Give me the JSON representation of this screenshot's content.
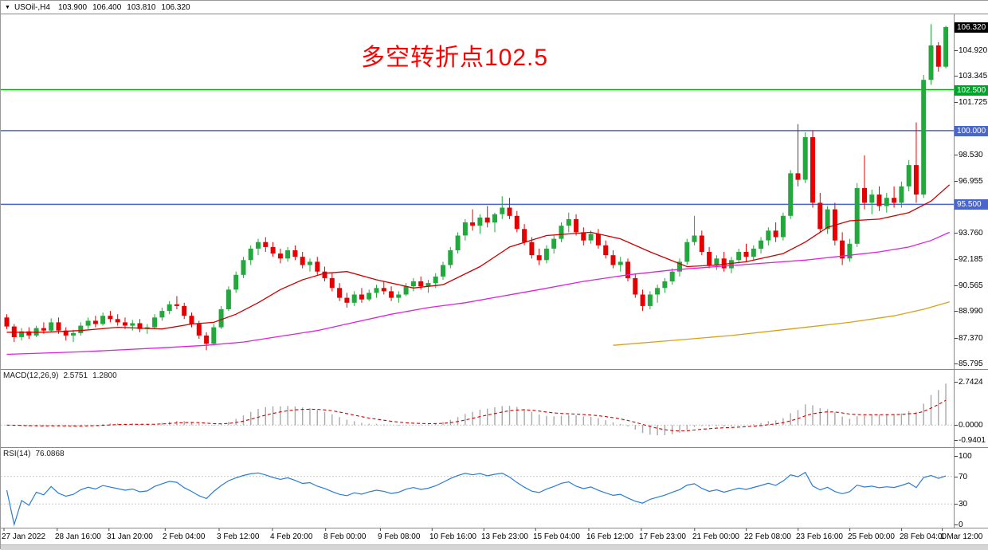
{
  "title_bar": {
    "collapse_icon": "▼",
    "symbol_period": "USOil-,H4",
    "open": "103.900",
    "high": "106.400",
    "low": "103.810",
    "close": "106.320"
  },
  "annotation": {
    "text": "多空转折点102.5",
    "color": "#FF0000"
  },
  "colors": {
    "bull": "#22a83c",
    "bear": "#e60000",
    "ma_fast": "#cc0000",
    "ma_mid": "#dd22dd",
    "ma_slow": "#d8a018",
    "macd_hist": "#a8a8a8",
    "macd_signal": "#cc0000",
    "rsi_line": "#2b7cd3",
    "level_dotted": "#c8c8c8",
    "line_green": "#00b300",
    "line_blue": "#4a66cc",
    "tag_black_bg": "#000000"
  },
  "price_scale": {
    "labels": [
      "104.920",
      "103.345",
      "101.725",
      "98.530",
      "96.955",
      "93.760",
      "92.185",
      "90.565",
      "88.990",
      "87.370",
      "85.795"
    ],
    "tags": [
      {
        "text": "106.320",
        "bg": "#000000"
      },
      {
        "text": "102.500",
        "bg": "#00a32a"
      },
      {
        "text": "100.000",
        "bg": "#4a66cc"
      },
      {
        "text": "95.500",
        "bg": "#4a66cc"
      }
    ]
  },
  "macd": {
    "label": "MACD(12,26,9)",
    "value_main": "2.5751",
    "value_signal": "1.2800",
    "scale_labels": [
      "2.7424",
      "0.0000",
      "-0.9401"
    ],
    "scale_values": [
      2.7424,
      0,
      -0.9401
    ],
    "range": [
      -1.2,
      3.3
    ],
    "params": {
      "fast": 12,
      "slow": 26,
      "signal": 9
    }
  },
  "rsi": {
    "label": "RSI(14)",
    "value": "76.0868",
    "scale_labels": [
      "100",
      "70",
      "30",
      "0"
    ],
    "scale_values": [
      100,
      70,
      30,
      0
    ],
    "levels": [
      70,
      30
    ],
    "period": 14
  },
  "chart_data": {
    "type": "candlestick",
    "symbol": "USOil",
    "timeframe": "H4",
    "title": "USOil H4 with MACD(12,26,9) and RSI(14), long/short pivot annotation at 102.5",
    "ohlc_current": {
      "open": 103.9,
      "high": 106.4,
      "low": 103.81,
      "close": 106.32
    },
    "y_axis": {
      "min": 85.5,
      "max": 107.05
    },
    "horizontal_lines": [
      {
        "value": 102.5,
        "color": "#00b300"
      },
      {
        "value": 100.0,
        "color": "#4a66cc"
      },
      {
        "value": 95.5,
        "color": "#4a66cc"
      }
    ],
    "candles": [
      [
        88.6,
        88.8,
        87.9,
        88.05
      ],
      [
        88.05,
        88.2,
        87.1,
        87.4
      ],
      [
        87.4,
        87.95,
        87.2,
        87.75
      ],
      [
        87.75,
        88.0,
        87.3,
        87.5
      ],
      [
        87.5,
        88.1,
        87.4,
        87.95
      ],
      [
        87.95,
        88.3,
        87.6,
        87.8
      ],
      [
        87.8,
        88.55,
        87.7,
        88.3
      ],
      [
        88.3,
        88.6,
        87.6,
        87.8
      ],
      [
        87.8,
        88.0,
        87.2,
        87.5
      ],
      [
        87.5,
        87.85,
        87.1,
        87.65
      ],
      [
        87.65,
        88.3,
        87.5,
        88.1
      ],
      [
        88.1,
        88.6,
        87.9,
        88.4
      ],
      [
        88.4,
        88.7,
        88.0,
        88.2
      ],
      [
        88.2,
        88.9,
        88.1,
        88.7
      ],
      [
        88.7,
        89.0,
        88.3,
        88.5
      ],
      [
        88.5,
        88.8,
        88.1,
        88.3
      ],
      [
        88.3,
        88.6,
        87.9,
        88.1
      ],
      [
        88.1,
        88.45,
        87.8,
        88.25
      ],
      [
        88.25,
        88.5,
        87.7,
        87.9
      ],
      [
        87.9,
        88.2,
        87.6,
        88.0
      ],
      [
        88.0,
        88.8,
        87.9,
        88.6
      ],
      [
        88.6,
        89.2,
        88.4,
        89.0
      ],
      [
        89.0,
        89.6,
        88.8,
        89.4
      ],
      [
        89.4,
        89.9,
        89.1,
        89.3
      ],
      [
        89.3,
        89.5,
        88.5,
        88.7
      ],
      [
        88.7,
        88.9,
        88.0,
        88.2
      ],
      [
        88.2,
        88.4,
        87.3,
        87.5
      ],
      [
        87.5,
        87.7,
        86.6,
        87.0
      ],
      [
        87.0,
        88.2,
        86.9,
        88.0
      ],
      [
        88.0,
        89.3,
        87.9,
        89.1
      ],
      [
        89.1,
        90.5,
        89.0,
        90.3
      ],
      [
        90.3,
        91.4,
        90.1,
        91.2
      ],
      [
        91.2,
        92.3,
        91.0,
        92.1
      ],
      [
        92.1,
        93.0,
        91.8,
        92.8
      ],
      [
        92.8,
        93.4,
        92.4,
        93.2
      ],
      [
        93.2,
        93.5,
        92.6,
        92.9
      ],
      [
        92.9,
        93.2,
        92.3,
        92.5
      ],
      [
        92.5,
        92.8,
        91.9,
        92.2
      ],
      [
        92.2,
        92.9,
        92.0,
        92.7
      ],
      [
        92.7,
        93.0,
        92.1,
        92.3
      ],
      [
        92.3,
        92.6,
        91.6,
        91.8
      ],
      [
        91.8,
        92.2,
        91.4,
        92.0
      ],
      [
        92.0,
        92.3,
        91.2,
        91.4
      ],
      [
        91.4,
        91.7,
        90.8,
        91.0
      ],
      [
        91.0,
        91.3,
        90.2,
        90.4
      ],
      [
        90.4,
        90.7,
        89.6,
        89.8
      ],
      [
        89.8,
        90.1,
        89.2,
        89.5
      ],
      [
        89.5,
        90.2,
        89.3,
        90.0
      ],
      [
        90.0,
        90.4,
        89.5,
        89.7
      ],
      [
        89.7,
        90.3,
        89.6,
        90.1
      ],
      [
        90.1,
        90.6,
        89.8,
        90.4
      ],
      [
        90.4,
        90.8,
        90.0,
        90.2
      ],
      [
        90.2,
        90.5,
        89.6,
        89.8
      ],
      [
        89.8,
        90.2,
        89.5,
        90.0
      ],
      [
        90.0,
        90.7,
        89.9,
        90.5
      ],
      [
        90.5,
        91.0,
        90.2,
        90.8
      ],
      [
        90.8,
        91.1,
        90.3,
        90.5
      ],
      [
        90.5,
        90.9,
        90.1,
        90.7
      ],
      [
        90.7,
        91.3,
        90.4,
        91.1
      ],
      [
        91.1,
        92.0,
        90.9,
        91.8
      ],
      [
        91.8,
        92.9,
        91.6,
        92.7
      ],
      [
        92.7,
        93.8,
        92.5,
        93.6
      ],
      [
        93.6,
        94.6,
        93.3,
        94.4
      ],
      [
        94.4,
        95.2,
        93.9,
        94.2
      ],
      [
        94.2,
        94.9,
        93.7,
        94.7
      ],
      [
        94.7,
        95.4,
        94.1,
        94.4
      ],
      [
        94.4,
        95.0,
        93.8,
        94.9
      ],
      [
        94.9,
        96.0,
        94.6,
        95.3
      ],
      [
        95.3,
        95.9,
        94.6,
        94.8
      ],
      [
        94.8,
        95.1,
        93.8,
        94.0
      ],
      [
        94.0,
        94.3,
        93.0,
        93.2
      ],
      [
        93.2,
        93.5,
        92.2,
        92.4
      ],
      [
        92.4,
        92.8,
        91.8,
        92.1
      ],
      [
        92.1,
        93.0,
        91.9,
        92.8
      ],
      [
        92.8,
        93.6,
        92.5,
        93.4
      ],
      [
        93.4,
        94.4,
        93.2,
        94.2
      ],
      [
        94.2,
        95.0,
        93.8,
        94.6
      ],
      [
        94.6,
        94.9,
        93.6,
        93.8
      ],
      [
        93.8,
        94.1,
        93.0,
        93.3
      ],
      [
        93.3,
        93.9,
        93.1,
        93.7
      ],
      [
        93.7,
        94.0,
        92.8,
        93.0
      ],
      [
        93.0,
        93.3,
        92.2,
        92.4
      ],
      [
        92.4,
        92.7,
        91.6,
        91.8
      ],
      [
        91.8,
        92.3,
        91.4,
        92.0
      ],
      [
        92.0,
        92.2,
        90.8,
        91.0
      ],
      [
        91.0,
        91.3,
        89.8,
        90.0
      ],
      [
        90.0,
        90.3,
        89.0,
        89.3
      ],
      [
        89.3,
        90.2,
        89.1,
        90.0
      ],
      [
        90.0,
        90.6,
        89.5,
        90.4
      ],
      [
        90.4,
        91.0,
        90.1,
        90.8
      ],
      [
        90.8,
        91.6,
        90.6,
        91.4
      ],
      [
        91.4,
        92.2,
        91.1,
        92.0
      ],
      [
        92.0,
        93.4,
        91.8,
        93.2
      ],
      [
        93.2,
        94.8,
        93.0,
        93.6
      ],
      [
        93.6,
        93.9,
        92.4,
        92.6
      ],
      [
        92.6,
        92.9,
        91.6,
        91.8
      ],
      [
        91.8,
        92.4,
        91.5,
        92.2
      ],
      [
        92.2,
        92.6,
        91.4,
        91.6
      ],
      [
        91.6,
        92.3,
        91.3,
        92.1
      ],
      [
        92.1,
        92.8,
        91.9,
        92.6
      ],
      [
        92.6,
        93.1,
        92.0,
        92.3
      ],
      [
        92.3,
        93.0,
        92.1,
        92.8
      ],
      [
        92.8,
        93.5,
        92.5,
        93.3
      ],
      [
        93.3,
        94.1,
        93.0,
        93.9
      ],
      [
        93.9,
        94.4,
        93.2,
        93.5
      ],
      [
        93.5,
        95.0,
        93.3,
        94.8
      ],
      [
        94.8,
        97.6,
        94.6,
        97.4
      ],
      [
        97.4,
        100.4,
        96.6,
        97.0
      ],
      [
        97.0,
        99.9,
        96.8,
        99.6
      ],
      [
        99.6,
        100.0,
        95.3,
        95.6
      ],
      [
        95.6,
        96.2,
        93.8,
        94.0
      ],
      [
        94.0,
        95.4,
        93.7,
        95.2
      ],
      [
        95.2,
        95.6,
        93.0,
        93.3
      ],
      [
        93.3,
        93.8,
        91.8,
        92.2
      ],
      [
        92.2,
        93.4,
        92.0,
        93.1
      ],
      [
        93.1,
        96.8,
        92.9,
        96.5
      ],
      [
        96.5,
        98.5,
        95.2,
        95.6
      ],
      [
        95.6,
        96.4,
        94.9,
        96.1
      ],
      [
        96.1,
        96.6,
        95.1,
        95.4
      ],
      [
        95.4,
        96.2,
        95.0,
        95.9
      ],
      [
        95.9,
        96.6,
        95.3,
        95.6
      ],
      [
        95.6,
        96.9,
        95.3,
        96.6
      ],
      [
        96.6,
        98.2,
        96.3,
        97.9
      ],
      [
        97.9,
        100.5,
        95.6,
        96.1
      ],
      [
        96.1,
        103.4,
        95.9,
        103.1
      ],
      [
        103.1,
        106.5,
        102.8,
        105.2
      ],
      [
        105.2,
        105.4,
        103.6,
        103.9
      ],
      [
        103.9,
        106.4,
        103.8,
        106.32
      ]
    ],
    "moving_averages": [
      {
        "name": "ma-fast-red",
        "color": "#cc0000",
        "points": [
          [
            0,
            87.7
          ],
          [
            5,
            87.7
          ],
          [
            10,
            87.8
          ],
          [
            15,
            88.0
          ],
          [
            21,
            87.9
          ],
          [
            25,
            88.2
          ],
          [
            28,
            88.3
          ],
          [
            31,
            88.8
          ],
          [
            34,
            89.5
          ],
          [
            37,
            90.3
          ],
          [
            40,
            90.9
          ],
          [
            43,
            91.3
          ],
          [
            46,
            91.4
          ],
          [
            50,
            90.9
          ],
          [
            55,
            90.4
          ],
          [
            59,
            90.6
          ],
          [
            64,
            91.7
          ],
          [
            68,
            92.9
          ],
          [
            73,
            93.6
          ],
          [
            79,
            93.8
          ],
          [
            83,
            93.4
          ],
          [
            87,
            92.6
          ],
          [
            92,
            91.7
          ],
          [
            96,
            91.8
          ],
          [
            100,
            92.0
          ],
          [
            105,
            92.5
          ],
          [
            108,
            93.2
          ],
          [
            111,
            94.1
          ],
          [
            114,
            94.5
          ],
          [
            118,
            94.6
          ],
          [
            122,
            95.0
          ],
          [
            125,
            95.7
          ],
          [
            127.5,
            96.7
          ]
        ]
      },
      {
        "name": "ma-mid-magenta",
        "color": "#dd22dd",
        "points": [
          [
            0,
            86.35
          ],
          [
            10,
            86.5
          ],
          [
            21,
            86.75
          ],
          [
            27,
            86.9
          ],
          [
            32,
            87.1
          ],
          [
            37,
            87.45
          ],
          [
            42,
            87.8
          ],
          [
            47,
            88.3
          ],
          [
            52,
            88.8
          ],
          [
            57,
            89.2
          ],
          [
            62,
            89.5
          ],
          [
            67,
            89.9
          ],
          [
            72,
            90.3
          ],
          [
            78,
            90.8
          ],
          [
            84,
            91.2
          ],
          [
            90,
            91.5
          ],
          [
            96,
            91.7
          ],
          [
            102,
            91.9
          ],
          [
            108,
            92.1
          ],
          [
            114,
            92.4
          ],
          [
            118,
            92.6
          ],
          [
            122,
            92.9
          ],
          [
            125,
            93.3
          ],
          [
            127.5,
            93.8
          ]
        ]
      },
      {
        "name": "ma-slow-orange",
        "color": "#d8a018",
        "points": [
          [
            82,
            86.9
          ],
          [
            90,
            87.2
          ],
          [
            98,
            87.5
          ],
          [
            106,
            87.9
          ],
          [
            114,
            88.3
          ],
          [
            120,
            88.7
          ],
          [
            124,
            89.1
          ],
          [
            127.5,
            89.55
          ]
        ]
      }
    ],
    "time_axis": [
      {
        "i": 0,
        "label": "27 Jan 2022"
      },
      {
        "i": 7.2,
        "label": "28 Jan 16:00"
      },
      {
        "i": 14.2,
        "label": "31 Jan 20:00"
      },
      {
        "i": 21.8,
        "label": "2 Feb 04:00"
      },
      {
        "i": 29.1,
        "label": "3 Feb 12:00"
      },
      {
        "i": 36.3,
        "label": "4 Feb 20:00"
      },
      {
        "i": 43.5,
        "label": "8 Feb 00:00"
      },
      {
        "i": 50.9,
        "label": "9 Feb 08:00"
      },
      {
        "i": 57.9,
        "label": "10 Feb 16:00"
      },
      {
        "i": 64.9,
        "label": "13 Feb 23:00"
      },
      {
        "i": 71.9,
        "label": "15 Feb 04:00"
      },
      {
        "i": 79.1,
        "label": "16 Feb 12:00"
      },
      {
        "i": 86.2,
        "label": "17 Feb 23:00"
      },
      {
        "i": 93.4,
        "label": "21 Feb 00:00"
      },
      {
        "i": 100.4,
        "label": "22 Feb 08:00"
      },
      {
        "i": 107.4,
        "label": "23 Feb 16:00"
      },
      {
        "i": 114.4,
        "label": "25 Feb 00:00"
      },
      {
        "i": 121.4,
        "label": "28 Feb 04:00"
      },
      {
        "i": 126.9,
        "label": "1 Mar 12:00"
      }
    ]
  }
}
